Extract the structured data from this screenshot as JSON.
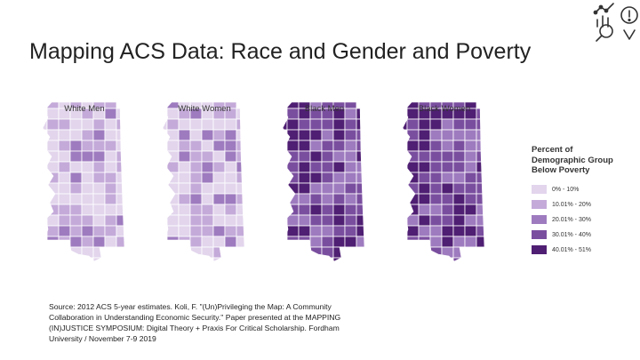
{
  "slide": {
    "title": "Mapping ACS Data: Race and Gender and Poverty"
  },
  "logo": {
    "icon": "data-analytics-icon"
  },
  "maps": [
    {
      "label": "White Men",
      "base_level": 1
    },
    {
      "label": "White Women",
      "base_level": 1
    },
    {
      "label": "Black Men",
      "base_level": 3
    },
    {
      "label": "Black Women",
      "base_level": 3
    }
  ],
  "legend": {
    "title_lines": [
      "Percent of",
      "Demographic Group",
      "Below Poverty"
    ],
    "items": [
      {
        "label": "0% - 10%",
        "color": "#e2d5ec"
      },
      {
        "label": "10.01% - 20%",
        "color": "#c4aad9"
      },
      {
        "label": "20.01% - 30%",
        "color": "#9e7bbf"
      },
      {
        "label": "30.01% - 40%",
        "color": "#7a4e9f"
      },
      {
        "label": "40.01% - 51%",
        "color": "#4f1f73"
      }
    ]
  },
  "source": {
    "lines": [
      "Source: 2012 ACS 5-year estimates. Koli, F. \"(Un)Privileging the Map: A Community",
      "Collaboration in Understanding Economic Security.\" Paper presented at the MAPPING",
      "(IN)JUSTICE SYMPOSIUM: Digital Theory + Praxis For Critical Scholarship. Fordham",
      "University / November 7-9 2019"
    ]
  }
}
